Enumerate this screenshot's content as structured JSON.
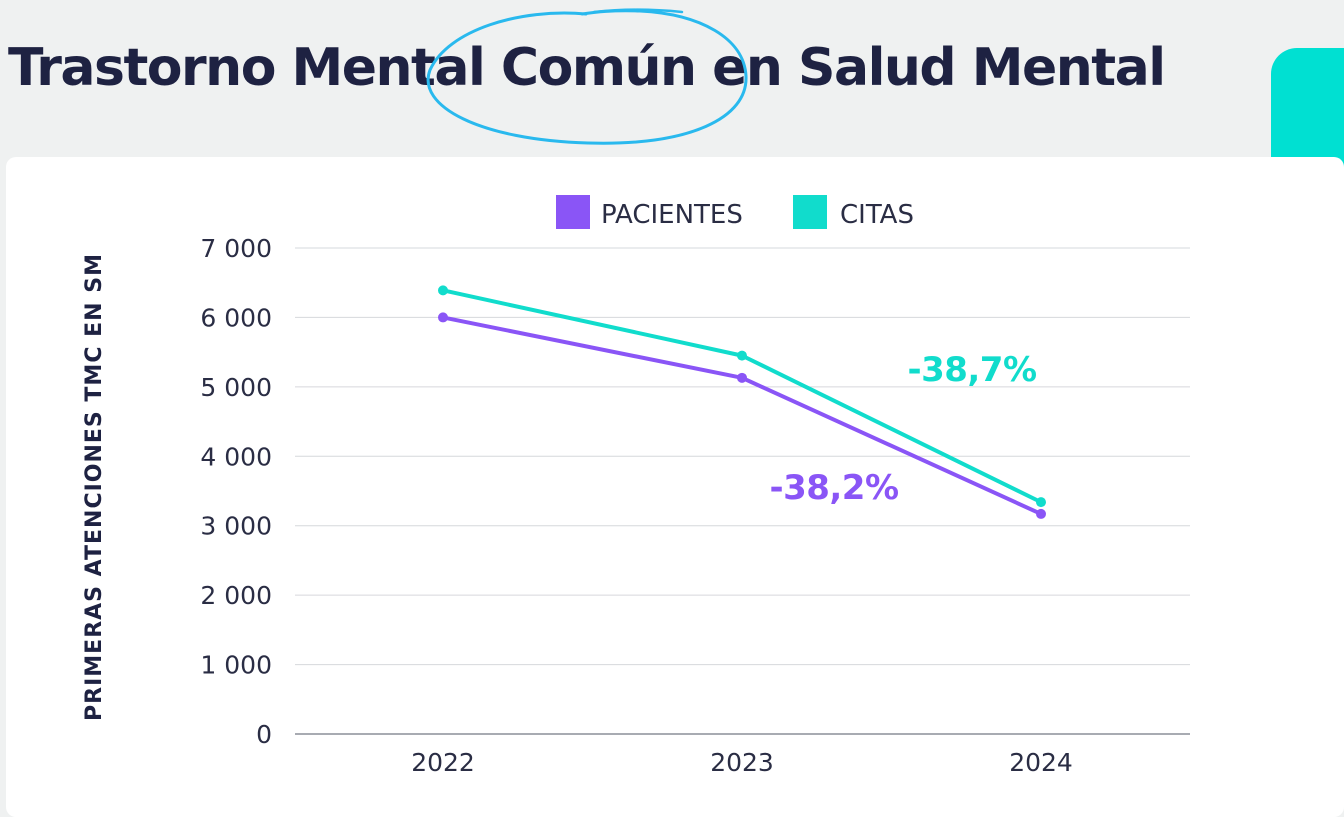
{
  "title": "Trastorno Mental Común en Salud Mental",
  "colors": {
    "pacientes": "#8a55f6",
    "citas": "#11dccc",
    "circle": "#29b9ee",
    "accent_block": "#00e0d2",
    "text": "#1e2242"
  },
  "chart_data": {
    "type": "line",
    "categories": [
      "2022",
      "2023",
      "2024"
    ],
    "series": [
      {
        "name": "PACIENTES",
        "values": [
          6000,
          5130,
          3170
        ],
        "color": "#8a55f6"
      },
      {
        "name": "CITAS",
        "values": [
          6390,
          5450,
          3340
        ],
        "color": "#11dccc"
      }
    ],
    "ylabel": "PRIMERAS ATENCIONES TMC EN SM",
    "xlabel": "",
    "ylim": [
      0,
      7000
    ],
    "yticks": [
      0,
      1000,
      2000,
      3000,
      4000,
      5000,
      6000,
      7000
    ],
    "ytick_labels": [
      "0",
      "1 000",
      "2 000",
      "3 000",
      "4 000",
      "5 000",
      "6 000",
      "7 000"
    ],
    "grid": true,
    "legend_position": "top-center",
    "annotations": [
      {
        "text": "-38,7%",
        "series": "CITAS"
      },
      {
        "text": "-38,2%",
        "series": "PACIENTES"
      }
    ]
  }
}
